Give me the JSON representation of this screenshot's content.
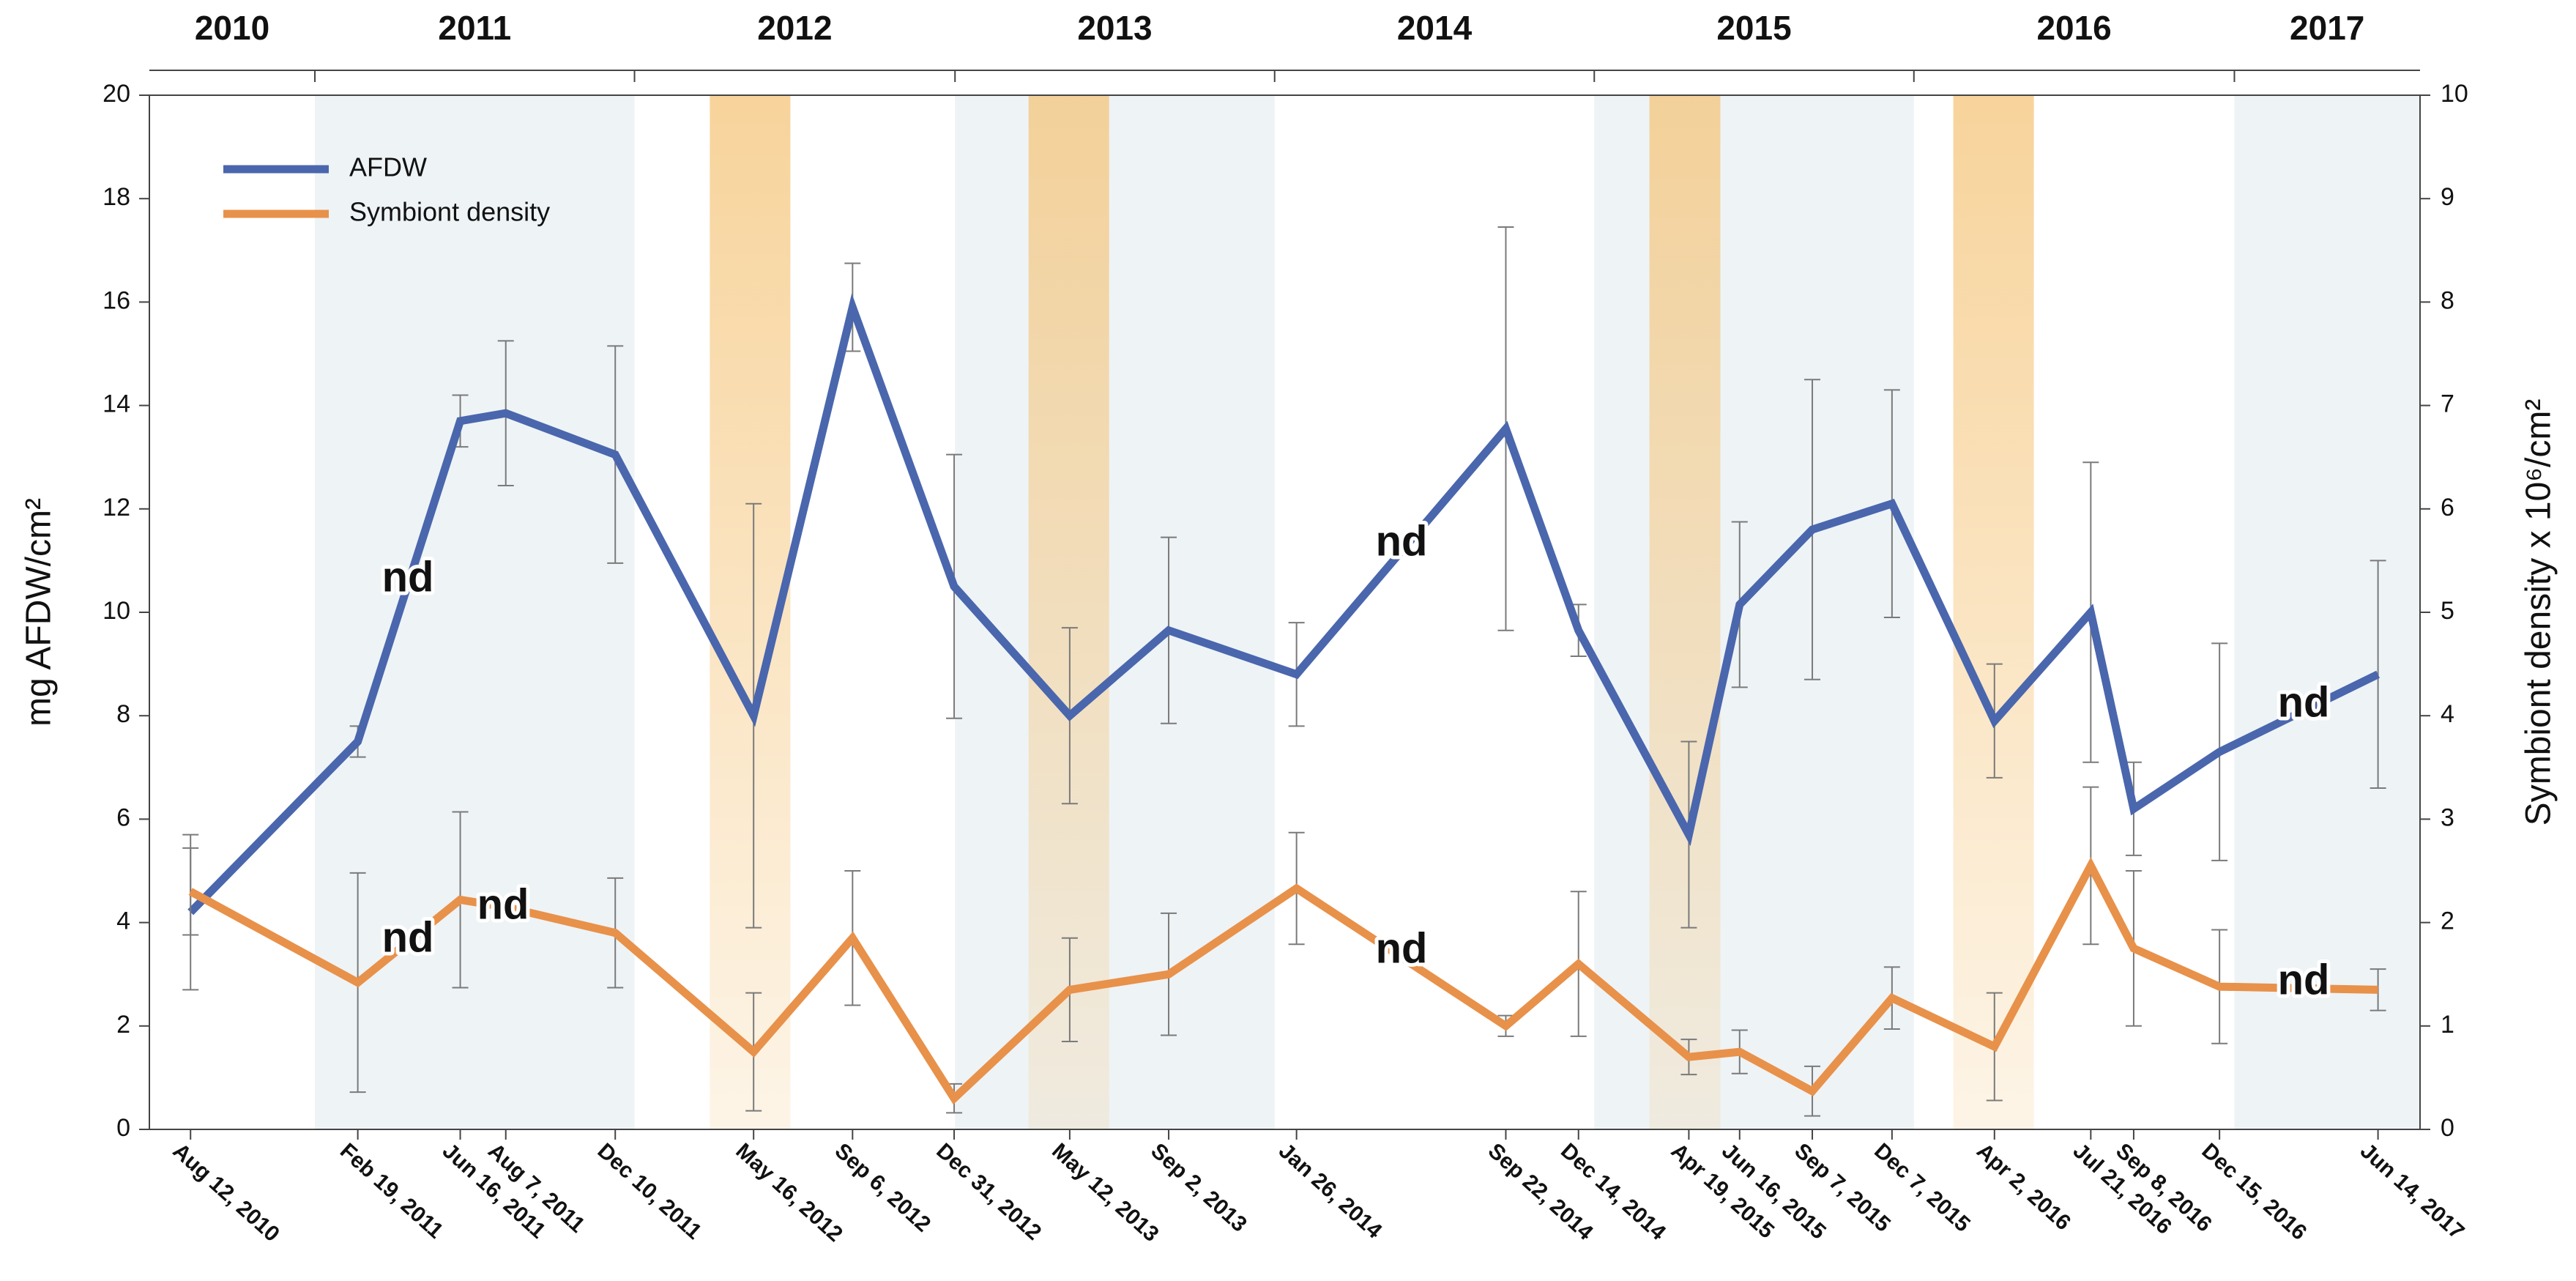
{
  "chart_data": {
    "type": "line",
    "x": [
      "Aug 12, 2010",
      "Feb 19, 2011",
      "Jun 16, 2011",
      "Aug 7, 2011",
      "Dec 10, 2011",
      "May 16, 2012",
      "Sep 6, 2012",
      "Dec 31, 2012",
      "May 12, 2013",
      "Sep 2, 2013",
      "Jan 26, 2014",
      "Sep 22, 2014",
      "Dec 14, 2014",
      "Apr 19, 2015",
      "Jun 16, 2015",
      "Sep 7, 2015",
      "Dec 7, 2015",
      "Apr 2, 2016",
      "Jul 21, 2016",
      "Sep 8, 2016",
      "Dec 15, 2016",
      "Jun 14, 2017"
    ],
    "xlim": [
      "Jun 26, 2010",
      "Aug 1, 2017"
    ],
    "years": [
      2010,
      2011,
      2012,
      2013,
      2014,
      2015,
      2016,
      2017
    ],
    "shaded_years": [
      2011,
      2013,
      2015,
      2017
    ],
    "highlight_periods": [
      [
        "Mar 27, 2012",
        "Jun 27, 2012"
      ],
      [
        "Mar 26, 2013",
        "Jun 26, 2013"
      ],
      [
        "Mar 5, 2015",
        "May 25, 2015"
      ],
      [
        "Feb 15, 2016",
        "May 17, 2016"
      ]
    ],
    "ylabel": "mg AFDW/cm²",
    "y2label": "Symbiont density x 10⁶/cm²",
    "ylim": [
      0,
      20
    ],
    "yticks": [
      0,
      2,
      4,
      6,
      8,
      10,
      12,
      14,
      16,
      18,
      20
    ],
    "y2lim": [
      0,
      10
    ],
    "y2ticks": [
      0,
      1,
      2,
      3,
      4,
      5,
      6,
      7,
      8,
      9,
      10
    ],
    "legend": "upper left",
    "series": [
      {
        "name": "AFDW",
        "color": "#4a66ad",
        "values": [
          4.2,
          7.5,
          13.7,
          13.85,
          13.05,
          8.0,
          15.9,
          10.5,
          8.0,
          9.65,
          8.8,
          13.55,
          9.65,
          5.7,
          10.15,
          11.6,
          12.1,
          7.9,
          10.0,
          6.2,
          7.3,
          8.8
        ],
        "errors": [
          1.5,
          0.3,
          0.5,
          1.4,
          2.1,
          4.1,
          0.85,
          2.55,
          1.7,
          1.8,
          1.0,
          3.9,
          0.5,
          1.8,
          1.6,
          2.9,
          2.2,
          1.1,
          2.9,
          0.9,
          2.1,
          2.2
        ]
      },
      {
        "name": "Symbiont density",
        "color": "#e8914a",
        "axis": "y2",
        "values": [
          2.3,
          1.42,
          2.22,
          2.15,
          1.9,
          0.75,
          1.85,
          0.3,
          1.35,
          1.5,
          2.33,
          1.0,
          1.6,
          0.7,
          0.75,
          0.37,
          1.27,
          0.8,
          2.55,
          1.75,
          1.38,
          1.35
        ],
        "errors": [
          0.42,
          1.06,
          0.85,
          null,
          0.53,
          0.57,
          0.65,
          0.14,
          0.5,
          0.59,
          0.54,
          0.1,
          0.7,
          0.17,
          0.21,
          0.24,
          0.3,
          0.52,
          0.76,
          0.75,
          0.55,
          0.2
        ]
      }
    ],
    "annotations": [
      "nd",
      "nd",
      "nd",
      "nd",
      "nd",
      "nd",
      "nd"
    ]
  }
}
